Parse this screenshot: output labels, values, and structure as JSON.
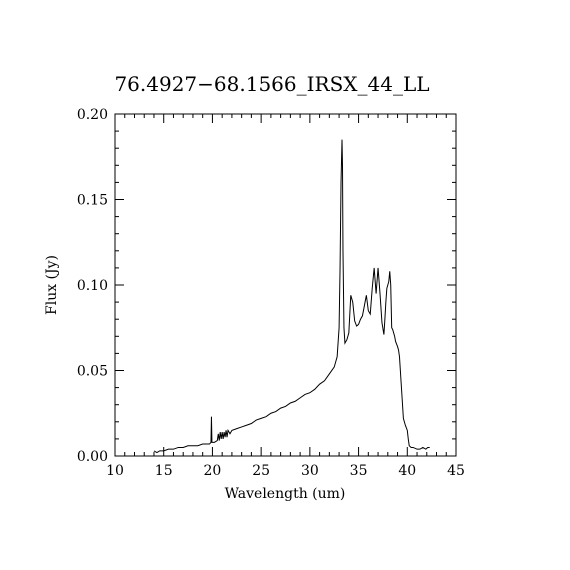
{
  "chart_data": {
    "type": "line",
    "title": "76.4927−68.1566_IRSX_44_LL",
    "xlabel": "Wavelength (um)",
    "ylabel": "Flux (Jy)",
    "xlim": [
      10,
      45
    ],
    "ylim": [
      0,
      0.2
    ],
    "xticks": [
      10,
      15,
      20,
      25,
      30,
      35,
      40,
      45
    ],
    "xtick_labels": [
      "10",
      "15",
      "20",
      "25",
      "30",
      "35",
      "40",
      "45"
    ],
    "yticks": [
      0,
      0.05,
      0.1,
      0.15,
      0.2
    ],
    "ytick_labels": [
      "0.00",
      "0.05",
      "0.10",
      "0.15",
      "0.20"
    ],
    "grid": false,
    "series": [
      {
        "x": [
          14.0,
          14.3,
          14.6,
          15.0,
          15.5,
          16.0,
          16.5,
          17.0,
          17.5,
          18.0,
          18.5,
          19.0,
          19.4,
          19.7,
          19.85,
          19.9,
          19.95,
          20.2,
          20.5,
          20.6,
          20.7,
          20.8,
          20.9,
          21.0,
          21.1,
          21.2,
          21.3,
          21.4,
          21.5,
          21.6,
          21.8,
          22.0,
          22.5,
          23.0,
          23.5,
          24.0,
          24.5,
          25.0,
          25.5,
          26.0,
          26.5,
          27.0,
          27.5,
          28.0,
          28.5,
          29.0,
          29.5,
          30.0,
          30.5,
          31.0,
          31.5,
          32.0,
          32.5,
          32.8,
          33.0,
          33.1,
          33.2,
          33.3,
          33.35,
          33.4,
          33.5,
          33.6,
          33.7,
          33.8,
          34.0,
          34.2,
          34.4,
          34.6,
          34.8,
          35.0,
          35.2,
          35.4,
          35.6,
          35.8,
          36.0,
          36.2,
          36.4,
          36.6,
          36.8,
          37.0,
          37.2,
          37.4,
          37.6,
          37.7,
          37.8,
          37.9,
          38.0,
          38.1,
          38.2,
          38.3,
          38.4,
          38.5,
          38.7,
          38.8,
          39.0,
          39.1,
          39.2,
          39.4,
          39.6,
          39.8,
          40.0,
          40.1,
          40.2,
          40.4,
          40.6,
          41.0,
          41.3,
          41.6,
          41.9,
          42.1,
          42.3
        ],
        "y": [
          0.003,
          0.002,
          0.003,
          0.003,
          0.004,
          0.004,
          0.005,
          0.005,
          0.006,
          0.006,
          0.006,
          0.007,
          0.007,
          0.007,
          0.008,
          0.023,
          0.008,
          0.008,
          0.009,
          0.013,
          0.009,
          0.014,
          0.01,
          0.014,
          0.01,
          0.014,
          0.011,
          0.015,
          0.011,
          0.015,
          0.013,
          0.015,
          0.016,
          0.017,
          0.018,
          0.019,
          0.021,
          0.022,
          0.023,
          0.025,
          0.026,
          0.028,
          0.029,
          0.031,
          0.032,
          0.034,
          0.036,
          0.037,
          0.039,
          0.042,
          0.044,
          0.048,
          0.052,
          0.058,
          0.075,
          0.11,
          0.16,
          0.185,
          0.17,
          0.12,
          0.075,
          0.066,
          0.067,
          0.068,
          0.072,
          0.094,
          0.09,
          0.079,
          0.076,
          0.077,
          0.08,
          0.082,
          0.088,
          0.094,
          0.085,
          0.083,
          0.098,
          0.11,
          0.095,
          0.11,
          0.095,
          0.078,
          0.071,
          0.08,
          0.09,
          0.098,
          0.1,
          0.102,
          0.108,
          0.1,
          0.075,
          0.074,
          0.07,
          0.067,
          0.064,
          0.062,
          0.058,
          0.04,
          0.022,
          0.018,
          0.015,
          0.01,
          0.006,
          0.005,
          0.005,
          0.004,
          0.004,
          0.005,
          0.004,
          0.005,
          0.005
        ]
      }
    ]
  }
}
